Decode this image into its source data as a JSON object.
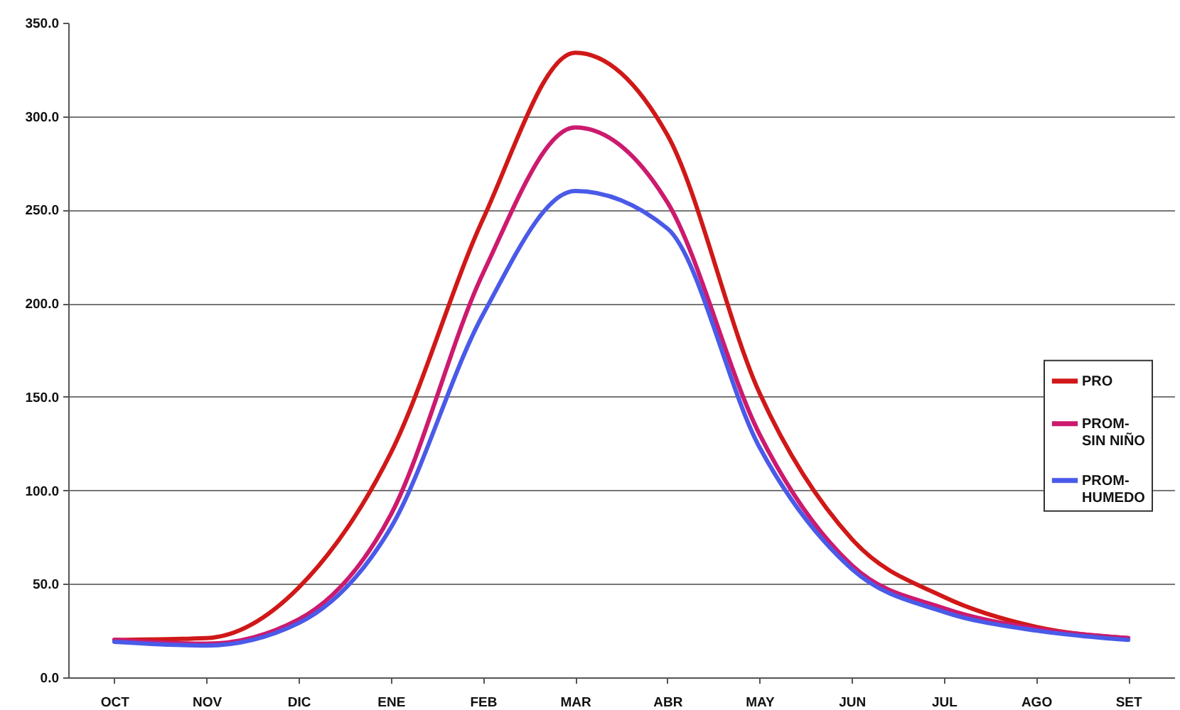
{
  "chart_data": {
    "type": "line",
    "categories": [
      "OCT",
      "NOV",
      "DIC",
      "ENE",
      "FEB",
      "MAR",
      "ABR",
      "MAY",
      "JUN",
      "JUL",
      "AGO",
      "SET"
    ],
    "series": [
      {
        "name": "PRO",
        "color": "#d01818",
        "values": [
          20,
          21,
          48,
          120,
          245,
          334,
          290,
          152,
          74,
          43,
          27,
          21
        ]
      },
      {
        "name": "PROM-SIN NIÑO",
        "color": "#cc1a6e",
        "values": [
          20,
          18,
          31,
          87,
          216,
          294,
          254,
          130,
          60,
          37,
          26,
          21
        ]
      },
      {
        "name": "PROM-HUMEDO",
        "color": "#4a5ae8",
        "values": [
          19,
          17,
          29,
          80,
          194,
          260,
          240,
          123,
          58,
          35,
          25,
          20
        ]
      }
    ],
    "ylim": [
      0,
      350
    ],
    "yticks": [
      {
        "value": 0,
        "label": "0.0"
      },
      {
        "value": 50,
        "label": "50.0"
      },
      {
        "value": 100,
        "label": "100.0"
      },
      {
        "value": 150,
        "label": "150.0"
      },
      {
        "value": 200,
        "label": "200.0"
      },
      {
        "value": 250,
        "label": "250.0"
      },
      {
        "value": 300,
        "label": "300.0"
      },
      {
        "value": 350,
        "label": "350.0"
      }
    ],
    "grid": "y",
    "legend": "right",
    "line_style": "solid"
  }
}
